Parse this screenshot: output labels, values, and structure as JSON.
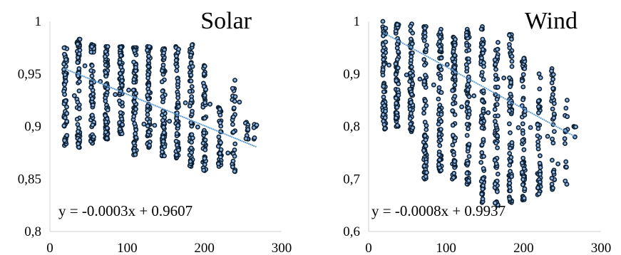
{
  "chart_data": [
    {
      "type": "scatter",
      "title": "Solar",
      "xlim": [
        0,
        300
      ],
      "ylim": [
        0.8,
        1.0
      ],
      "x_ticks": [
        0,
        100,
        200,
        300
      ],
      "x_tick_labels": [
        "0",
        "100",
        "200",
        "300"
      ],
      "y_ticks": [
        0.8,
        0.85,
        0.9,
        0.95,
        1.0
      ],
      "y_tick_labels": [
        "0,8",
        "0,85",
        "0,9",
        "0,95",
        "1"
      ],
      "trendline": {
        "slope": -0.0003,
        "intercept": 0.9607,
        "equation": "y = -0.0003x + 0.9607",
        "x_range": [
          20,
          268
        ]
      },
      "columns": [
        {
          "x": 20,
          "ymin": 0.882,
          "ymax": 0.975,
          "n": 60
        },
        {
          "x": 37,
          "ymin": 0.88,
          "ymax": 0.983,
          "n": 65
        },
        {
          "x": 55,
          "ymin": 0.884,
          "ymax": 0.978,
          "n": 65
        },
        {
          "x": 73,
          "ymin": 0.888,
          "ymax": 0.976,
          "n": 70
        },
        {
          "x": 92,
          "ymin": 0.893,
          "ymax": 0.976,
          "n": 70
        },
        {
          "x": 110,
          "ymin": 0.873,
          "ymax": 0.975,
          "n": 70
        },
        {
          "x": 128,
          "ymin": 0.88,
          "ymax": 0.976,
          "n": 70
        },
        {
          "x": 147,
          "ymin": 0.872,
          "ymax": 0.974,
          "n": 70
        },
        {
          "x": 165,
          "ymin": 0.87,
          "ymax": 0.976,
          "n": 65
        },
        {
          "x": 183,
          "ymin": 0.862,
          "ymax": 0.978,
          "n": 60
        },
        {
          "x": 200,
          "ymin": 0.858,
          "ymax": 0.958,
          "n": 55
        },
        {
          "x": 220,
          "ymin": 0.862,
          "ymax": 0.918,
          "n": 35
        },
        {
          "x": 238,
          "ymin": 0.857,
          "ymax": 0.944,
          "n": 30
        },
        {
          "x": 255,
          "ymin": 0.888,
          "ymax": 0.904,
          "n": 12
        },
        {
          "x": 266,
          "ymin": 0.888,
          "ymax": 0.902,
          "n": 6
        }
      ]
    },
    {
      "type": "scatter",
      "title": "Wind",
      "xlim": [
        0,
        300
      ],
      "ylim": [
        0.6,
        1.0
      ],
      "x_ticks": [
        0,
        100,
        200,
        300
      ],
      "x_tick_labels": [
        "0",
        "100",
        "200",
        "300"
      ],
      "y_ticks": [
        0.6,
        0.7,
        0.8,
        0.9,
        1.0
      ],
      "y_tick_labels": [
        "0,6",
        "0,7",
        "0,8",
        "0,9",
        "1"
      ],
      "trendline": {
        "slope": -0.0008,
        "intercept": 0.9937,
        "equation": "y = -0.0008x + 0.9937",
        "x_range": [
          20,
          268
        ]
      },
      "columns": [
        {
          "x": 20,
          "ymin": 0.795,
          "ymax": 1.0,
          "n": 65
        },
        {
          "x": 37,
          "ymin": 0.8,
          "ymax": 0.995,
          "n": 70
        },
        {
          "x": 55,
          "ymin": 0.79,
          "ymax": 0.995,
          "n": 70
        },
        {
          "x": 73,
          "ymin": 0.7,
          "ymax": 0.99,
          "n": 75
        },
        {
          "x": 92,
          "ymin": 0.715,
          "ymax": 0.985,
          "n": 75
        },
        {
          "x": 110,
          "ymin": 0.7,
          "ymax": 0.97,
          "n": 75
        },
        {
          "x": 128,
          "ymin": 0.69,
          "ymax": 0.985,
          "n": 75
        },
        {
          "x": 147,
          "ymin": 0.655,
          "ymax": 0.99,
          "n": 75
        },
        {
          "x": 165,
          "ymin": 0.65,
          "ymax": 0.96,
          "n": 70
        },
        {
          "x": 183,
          "ymin": 0.655,
          "ymax": 0.975,
          "n": 70
        },
        {
          "x": 200,
          "ymin": 0.66,
          "ymax": 0.93,
          "n": 60
        },
        {
          "x": 220,
          "ymin": 0.67,
          "ymax": 0.9,
          "n": 45
        },
        {
          "x": 238,
          "ymin": 0.68,
          "ymax": 0.91,
          "n": 35
        },
        {
          "x": 255,
          "ymin": 0.69,
          "ymax": 0.85,
          "n": 15
        },
        {
          "x": 266,
          "ymin": 0.78,
          "ymax": 0.8,
          "n": 4
        }
      ]
    }
  ]
}
